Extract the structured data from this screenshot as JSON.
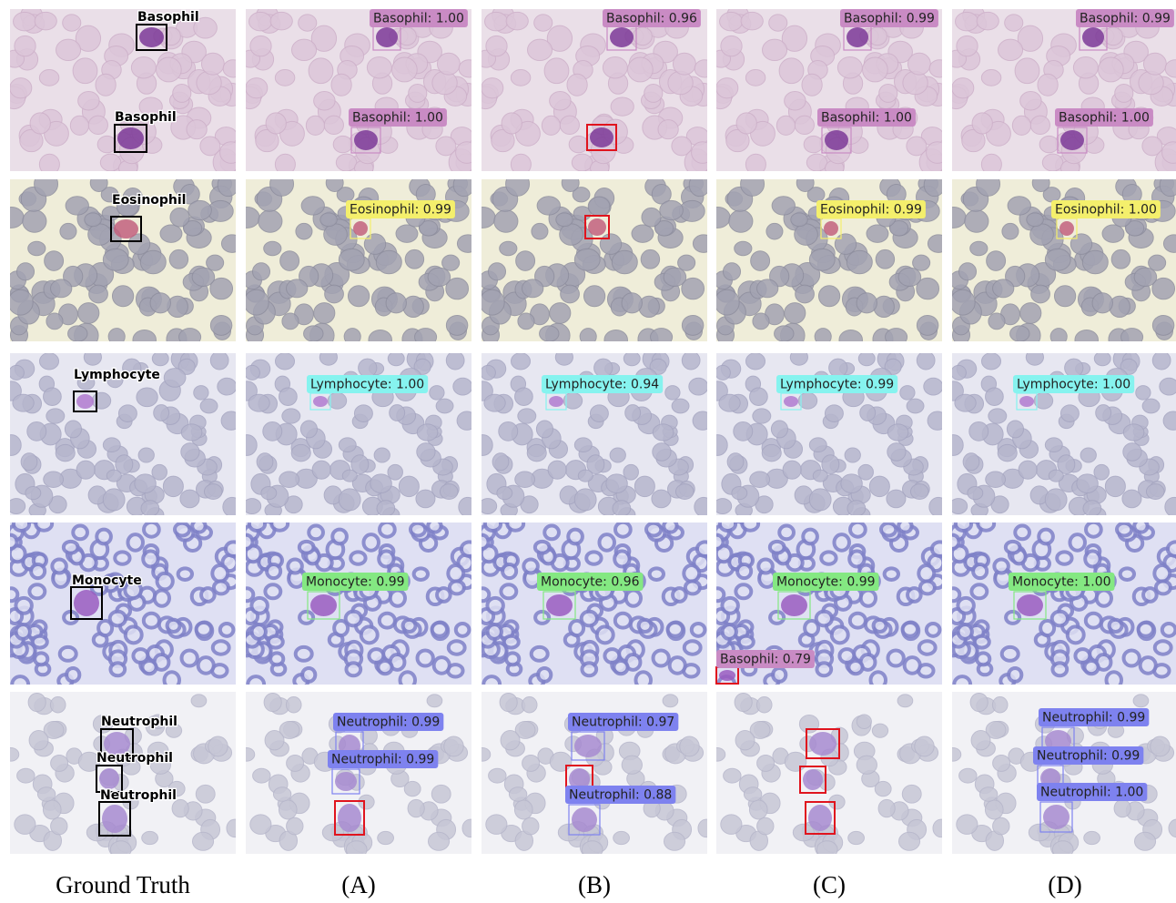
{
  "columns": [
    "Ground Truth",
    "(A)",
    "(B)",
    "(C)",
    "(D)"
  ],
  "rows": [
    {
      "panels": [
        {
          "labels": [
            "Basophil",
            "Basophil"
          ]
        },
        {
          "labels": [
            "Basophil: 1.00",
            "Basophil: 1.00"
          ]
        },
        {
          "labels": [
            "Basophil: 0.96"
          ]
        },
        {
          "labels": [
            "Basophil: 0.99",
            "Basophil: 1.00"
          ]
        },
        {
          "labels": [
            "Basophil: 0.99",
            "Basophil: 1.00"
          ]
        }
      ]
    },
    {
      "panels": [
        {
          "labels": [
            "Eosinophil"
          ]
        },
        {
          "labels": [
            "Eosinophil: 0.99"
          ]
        },
        {
          "labels": []
        },
        {
          "labels": [
            "Eosinophil: 0.99"
          ]
        },
        {
          "labels": [
            "Eosinophil: 1.00"
          ]
        }
      ]
    },
    {
      "panels": [
        {
          "labels": [
            "Lymphocyte"
          ]
        },
        {
          "labels": [
            "Lymphocyte: 1.00"
          ]
        },
        {
          "labels": [
            "Lymphocyte: 0.94"
          ]
        },
        {
          "labels": [
            "Lymphocyte: 0.99"
          ]
        },
        {
          "labels": [
            "Lymphocyte: 1.00"
          ]
        }
      ]
    },
    {
      "panels": [
        {
          "labels": [
            "Monocyte"
          ]
        },
        {
          "labels": [
            "Monocyte: 0.99"
          ]
        },
        {
          "labels": [
            "Monocyte: 0.96"
          ]
        },
        {
          "labels": [
            "Monocyte: 0.99",
            "Basophil: 0.79"
          ]
        },
        {
          "labels": [
            "Monocyte: 1.00"
          ]
        }
      ]
    },
    {
      "panels": [
        {
          "labels": [
            "Neutrophil",
            "Neutrophil",
            "Neutrophil"
          ]
        },
        {
          "labels": [
            "Neutrophil: 0.99",
            "Neutrophil: 0.99"
          ]
        },
        {
          "labels": [
            "Neutrophil: 0.97",
            "Neutrophil: 0.88"
          ]
        },
        {
          "labels": []
        },
        {
          "labels": [
            "Neutrophil: 0.99",
            "Neutrophil: 0.99",
            "Neutrophil: 1.00"
          ]
        }
      ]
    }
  ]
}
